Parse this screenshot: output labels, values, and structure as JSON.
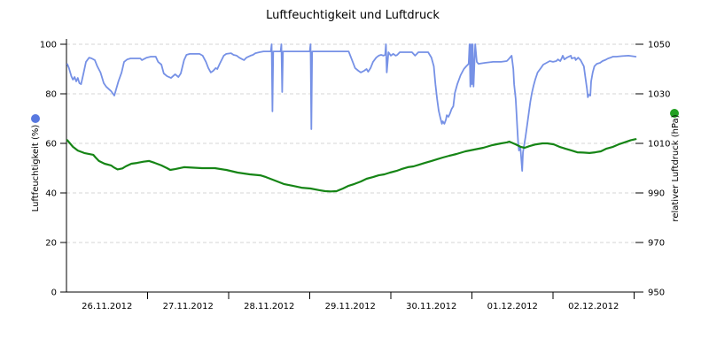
{
  "chart_data": {
    "type": "line",
    "title": "Luftfeuchtigkeit und Luftdruck",
    "grid": "horizontal-dashed",
    "legend_position": "axis-labels-with-dots",
    "x_axis": {
      "tick_labels": [
        "26.11.2012",
        "27.11.2012",
        "28.11.2012",
        "29.11.2012",
        "30.11.2012",
        "01.12.2012",
        "02.12.2012"
      ],
      "range_days": [
        0,
        7.07
      ]
    },
    "y_axis_left": {
      "label": "Luftfeuchtigkeit (%)",
      "ticks": [
        0,
        20,
        40,
        60,
        80,
        100
      ],
      "range": [
        0,
        100
      ]
    },
    "y_axis_right": {
      "label": "relativer Luftdruck (hPa)",
      "ticks": [
        950,
        970,
        990,
        1010,
        1030,
        1050
      ],
      "range": [
        950,
        1050
      ]
    },
    "colors": {
      "humidity_line": "#7691e6",
      "humidity_marker": "#5878e0",
      "pressure_line": "#168516",
      "pressure_marker": "#22a022",
      "grid": "#d6d6d6",
      "axis": "#000000"
    },
    "series": [
      {
        "name": "Luftfeuchtigkeit",
        "unit": "%",
        "axis": "left",
        "color": "#7691e6",
        "marker_color": "#5878e0",
        "stroke_width": 1.8,
        "points": [
          [
            0.01,
            92
          ],
          [
            0.03,
            90.5
          ],
          [
            0.06,
            87.1
          ],
          [
            0.08,
            85.7
          ],
          [
            0.1,
            86.8
          ],
          [
            0.12,
            85.0
          ],
          [
            0.14,
            86.4
          ],
          [
            0.16,
            84.3
          ],
          [
            0.18,
            83.9
          ],
          [
            0.21,
            88.2
          ],
          [
            0.24,
            92.9
          ],
          [
            0.28,
            94.6
          ],
          [
            0.31,
            94.3
          ],
          [
            0.35,
            93.6
          ],
          [
            0.38,
            91.1
          ],
          [
            0.42,
            88.6
          ],
          [
            0.46,
            84.3
          ],
          [
            0.49,
            82.9
          ],
          [
            0.55,
            81.1
          ],
          [
            0.59,
            79.3
          ],
          [
            0.64,
            85.0
          ],
          [
            0.68,
            88.6
          ],
          [
            0.71,
            92.9
          ],
          [
            0.75,
            93.9
          ],
          [
            0.79,
            94.3
          ],
          [
            0.91,
            94.3
          ],
          [
            0.93,
            93.6
          ],
          [
            0.99,
            94.6
          ],
          [
            1.04,
            95.0
          ],
          [
            1.1,
            95.0
          ],
          [
            1.13,
            92.9
          ],
          [
            1.17,
            91.8
          ],
          [
            1.2,
            88.2
          ],
          [
            1.24,
            87.1
          ],
          [
            1.29,
            86.4
          ],
          [
            1.34,
            87.9
          ],
          [
            1.38,
            86.8
          ],
          [
            1.41,
            88.2
          ],
          [
            1.45,
            93.6
          ],
          [
            1.48,
            95.7
          ],
          [
            1.52,
            96.1
          ],
          [
            1.64,
            96.1
          ],
          [
            1.68,
            95.4
          ],
          [
            1.72,
            92.9
          ],
          [
            1.75,
            90.4
          ],
          [
            1.78,
            88.6
          ],
          [
            1.81,
            89.3
          ],
          [
            1.84,
            90.4
          ],
          [
            1.86,
            90.0
          ],
          [
            1.89,
            92.1
          ],
          [
            1.94,
            95.4
          ],
          [
            1.97,
            96.1
          ],
          [
            2.03,
            96.4
          ],
          [
            2.06,
            95.7
          ],
          [
            2.1,
            95.4
          ],
          [
            2.13,
            94.6
          ],
          [
            2.17,
            93.9
          ],
          [
            2.19,
            93.6
          ],
          [
            2.22,
            94.6
          ],
          [
            2.27,
            95.4
          ],
          [
            2.3,
            95.7
          ],
          [
            2.33,
            96.4
          ],
          [
            2.38,
            96.8
          ],
          [
            2.43,
            97.1
          ],
          [
            2.52,
            97.1
          ],
          [
            2.53,
            100
          ],
          [
            2.54,
            72.9
          ],
          [
            2.55,
            97.1
          ],
          [
            2.64,
            97.1
          ],
          [
            2.65,
            100
          ],
          [
            2.66,
            80.7
          ],
          [
            2.67,
            97.1
          ],
          [
            3.0,
            97.1
          ],
          [
            3.01,
            100
          ],
          [
            3.02,
            65.7
          ],
          [
            3.03,
            97.1
          ],
          [
            3.35,
            97.1
          ],
          [
            3.48,
            97.1
          ],
          [
            3.53,
            92.9
          ],
          [
            3.56,
            90.4
          ],
          [
            3.6,
            89.3
          ],
          [
            3.63,
            88.6
          ],
          [
            3.67,
            89.3
          ],
          [
            3.7,
            90.0
          ],
          [
            3.72,
            88.9
          ],
          [
            3.75,
            90.4
          ],
          [
            3.78,
            92.9
          ],
          [
            3.82,
            94.6
          ],
          [
            3.85,
            95.4
          ],
          [
            3.88,
            95.7
          ],
          [
            3.91,
            95.4
          ],
          [
            3.93,
            95.7
          ],
          [
            3.94,
            100
          ],
          [
            3.95,
            88.6
          ],
          [
            3.97,
            96.8
          ],
          [
            4.0,
            95.4
          ],
          [
            4.03,
            96.1
          ],
          [
            4.06,
            95.4
          ],
          [
            4.08,
            95.7
          ],
          [
            4.11,
            96.8
          ],
          [
            4.26,
            96.8
          ],
          [
            4.3,
            95.4
          ],
          [
            4.34,
            96.8
          ],
          [
            4.46,
            96.8
          ],
          [
            4.5,
            94.6
          ],
          [
            4.53,
            91.1
          ],
          [
            4.55,
            83.9
          ],
          [
            4.57,
            77.9
          ],
          [
            4.59,
            73.2
          ],
          [
            4.61,
            70.4
          ],
          [
            4.63,
            67.9
          ],
          [
            4.64,
            68.9
          ],
          [
            4.66,
            67.9
          ],
          [
            4.68,
            69.6
          ],
          [
            4.69,
            71.4
          ],
          [
            4.71,
            70.7
          ],
          [
            4.73,
            72.1
          ],
          [
            4.75,
            73.9
          ],
          [
            4.77,
            75.0
          ],
          [
            4.79,
            80.4
          ],
          [
            4.82,
            83.9
          ],
          [
            4.86,
            87.5
          ],
          [
            4.9,
            90.0
          ],
          [
            4.93,
            91.1
          ],
          [
            4.96,
            92.1
          ],
          [
            4.97,
            100
          ],
          [
            4.98,
            82.9
          ],
          [
            4.99,
            100
          ],
          [
            5.0,
            83.9
          ],
          [
            5.01,
            100
          ],
          [
            5.02,
            82.9
          ],
          [
            5.04,
            100
          ],
          [
            5.06,
            92.9
          ],
          [
            5.08,
            92.1
          ],
          [
            5.16,
            92.5
          ],
          [
            5.26,
            92.9
          ],
          [
            5.36,
            92.9
          ],
          [
            5.43,
            93.2
          ],
          [
            5.45,
            93.9
          ],
          [
            5.49,
            95.4
          ],
          [
            5.51,
            90.0
          ],
          [
            5.52,
            83.9
          ],
          [
            5.54,
            77.9
          ],
          [
            5.55,
            72.1
          ],
          [
            5.56,
            66.1
          ],
          [
            5.57,
            60.0
          ],
          [
            5.58,
            57.1
          ],
          [
            5.59,
            58.9
          ],
          [
            5.6,
            57.5
          ],
          [
            5.62,
            48.9
          ],
          [
            5.63,
            56.4
          ],
          [
            5.66,
            62.5
          ],
          [
            5.68,
            67.1
          ],
          [
            5.7,
            72.1
          ],
          [
            5.72,
            76.8
          ],
          [
            5.74,
            80.4
          ],
          [
            5.76,
            83.2
          ],
          [
            5.78,
            85.7
          ],
          [
            5.81,
            88.6
          ],
          [
            5.85,
            90.4
          ],
          [
            5.88,
            91.8
          ],
          [
            5.92,
            92.5
          ],
          [
            5.96,
            93.2
          ],
          [
            6.0,
            92.9
          ],
          [
            6.04,
            93.2
          ],
          [
            6.06,
            93.9
          ],
          [
            6.09,
            93.2
          ],
          [
            6.11,
            94.6
          ],
          [
            6.12,
            95.4
          ],
          [
            6.14,
            93.9
          ],
          [
            6.17,
            94.6
          ],
          [
            6.22,
            95.4
          ],
          [
            6.23,
            94.3
          ],
          [
            6.27,
            94.6
          ],
          [
            6.28,
            93.6
          ],
          [
            6.31,
            94.6
          ],
          [
            6.34,
            93.6
          ],
          [
            6.38,
            91.1
          ],
          [
            6.4,
            86.4
          ],
          [
            6.42,
            81.8
          ],
          [
            6.43,
            78.6
          ],
          [
            6.44,
            79.6
          ],
          [
            6.46,
            79.3
          ],
          [
            6.47,
            85.0
          ],
          [
            6.49,
            88.6
          ],
          [
            6.51,
            91.1
          ],
          [
            6.54,
            92.1
          ],
          [
            6.58,
            92.5
          ],
          [
            6.61,
            93.2
          ],
          [
            6.64,
            93.6
          ],
          [
            6.68,
            94.3
          ],
          [
            6.71,
            94.6
          ],
          [
            6.74,
            95.0
          ],
          [
            6.78,
            95.0
          ],
          [
            6.85,
            95.2
          ],
          [
            6.93,
            95.4
          ],
          [
            7.02,
            95.0
          ]
        ]
      },
      {
        "name": "relativer Luftdruck",
        "unit": "hPa",
        "axis": "right",
        "color": "#168516",
        "marker_color": "#22a022",
        "stroke_width": 2.2,
        "points": [
          [
            0.01,
            1011.3
          ],
          [
            0.08,
            1008.6
          ],
          [
            0.14,
            1007.1
          ],
          [
            0.22,
            1006.1
          ],
          [
            0.33,
            1005.4
          ],
          [
            0.36,
            1004.3
          ],
          [
            0.4,
            1002.9
          ],
          [
            0.47,
            1001.8
          ],
          [
            0.55,
            1001.1
          ],
          [
            0.58,
            1000.4
          ],
          [
            0.63,
            999.5
          ],
          [
            0.69,
            999.9
          ],
          [
            0.73,
            1000.7
          ],
          [
            0.8,
            1001.8
          ],
          [
            0.87,
            1002.1
          ],
          [
            0.95,
            1002.6
          ],
          [
            1.02,
            1002.9
          ],
          [
            1.09,
            1002.1
          ],
          [
            1.17,
            1001.1
          ],
          [
            1.24,
            1000.0
          ],
          [
            1.28,
            999.3
          ],
          [
            1.34,
            999.6
          ],
          [
            1.45,
            1000.4
          ],
          [
            1.67,
            1000.0
          ],
          [
            1.83,
            1000.0
          ],
          [
            1.97,
            999.3
          ],
          [
            2.11,
            998.2
          ],
          [
            2.26,
            997.5
          ],
          [
            2.39,
            997.1
          ],
          [
            2.46,
            996.4
          ],
          [
            2.57,
            995.0
          ],
          [
            2.68,
            993.6
          ],
          [
            2.79,
            992.9
          ],
          [
            2.9,
            992.1
          ],
          [
            3.01,
            991.8
          ],
          [
            3.12,
            991.1
          ],
          [
            3.19,
            990.7
          ],
          [
            3.26,
            990.6
          ],
          [
            3.33,
            990.7
          ],
          [
            3.41,
            991.8
          ],
          [
            3.48,
            992.9
          ],
          [
            3.55,
            993.6
          ],
          [
            3.63,
            994.6
          ],
          [
            3.7,
            995.7
          ],
          [
            3.78,
            996.4
          ],
          [
            3.85,
            997.1
          ],
          [
            3.92,
            997.5
          ],
          [
            3.99,
            998.2
          ],
          [
            4.07,
            998.9
          ],
          [
            4.13,
            999.6
          ],
          [
            4.21,
            1000.4
          ],
          [
            4.28,
            1000.7
          ],
          [
            4.35,
            1001.4
          ],
          [
            4.42,
            1002.1
          ],
          [
            4.5,
            1002.9
          ],
          [
            4.57,
            1003.6
          ],
          [
            4.64,
            1004.3
          ],
          [
            4.72,
            1005.0
          ],
          [
            4.81,
            1005.7
          ],
          [
            4.92,
            1006.8
          ],
          [
            5.03,
            1007.5
          ],
          [
            5.14,
            1008.2
          ],
          [
            5.25,
            1009.3
          ],
          [
            5.36,
            1010.0
          ],
          [
            5.43,
            1010.4
          ],
          [
            5.46,
            1010.7
          ],
          [
            5.54,
            1009.6
          ],
          [
            5.6,
            1008.6
          ],
          [
            5.65,
            1008.2
          ],
          [
            5.71,
            1008.9
          ],
          [
            5.79,
            1009.6
          ],
          [
            5.87,
            1010.0
          ],
          [
            5.93,
            1010.0
          ],
          [
            6.01,
            1009.6
          ],
          [
            6.08,
            1008.6
          ],
          [
            6.15,
            1007.9
          ],
          [
            6.23,
            1007.1
          ],
          [
            6.3,
            1006.4
          ],
          [
            6.37,
            1006.3
          ],
          [
            6.45,
            1006.1
          ],
          [
            6.52,
            1006.4
          ],
          [
            6.59,
            1006.8
          ],
          [
            6.66,
            1007.9
          ],
          [
            6.74,
            1008.6
          ],
          [
            6.81,
            1009.6
          ],
          [
            6.88,
            1010.4
          ],
          [
            6.96,
            1011.3
          ],
          [
            7.02,
            1011.7
          ]
        ]
      }
    ]
  }
}
